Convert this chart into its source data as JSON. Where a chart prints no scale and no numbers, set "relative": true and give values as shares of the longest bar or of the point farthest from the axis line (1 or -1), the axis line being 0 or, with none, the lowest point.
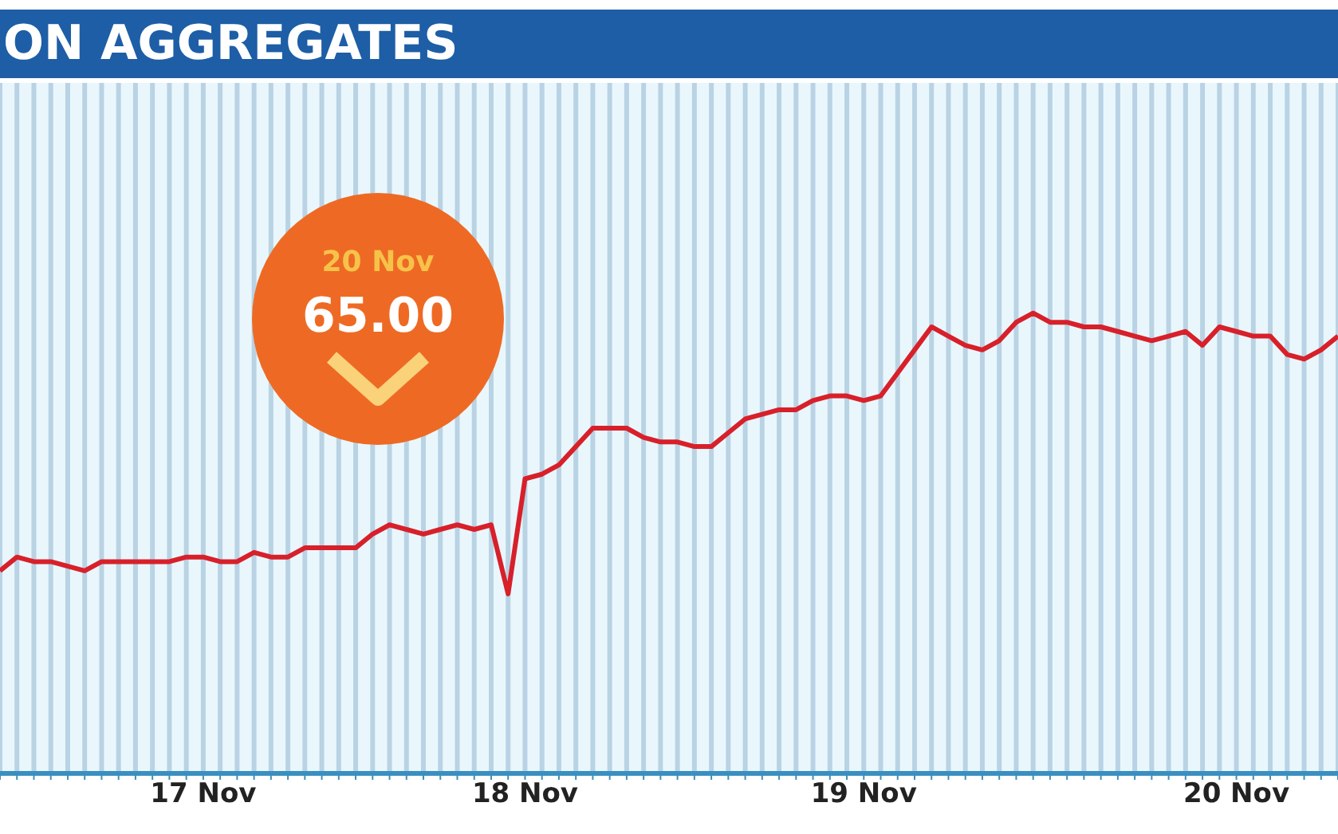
{
  "chart_data": {
    "type": "line",
    "title": "ON AGGREGATES",
    "relative": true,
    "annotations": [
      "20 Nov",
      "65.00"
    ],
    "grid": "x",
    "line_style": "solid",
    "categories": [
      null,
      null,
      null,
      null,
      null,
      null,
      null,
      null,
      null,
      null,
      null,
      null,
      "17 Nov",
      null,
      null,
      null,
      null,
      null,
      null,
      null,
      null,
      null,
      null,
      null,
      null,
      null,
      null,
      null,
      null,
      null,
      null,
      "18 Nov",
      null,
      null,
      null,
      null,
      null,
      null,
      null,
      null,
      null,
      null,
      null,
      null,
      null,
      null,
      null,
      null,
      null,
      null,
      null,
      "19 Nov",
      null,
      null,
      null,
      null,
      null,
      null,
      null,
      null,
      null,
      null,
      null,
      null,
      null,
      null,
      null,
      null,
      null,
      null,
      null,
      null,
      null,
      "20 Nov",
      null,
      null,
      null,
      null,
      null,
      null
    ],
    "series": [
      {
        "color": "#d8202a",
        "values": [
          0.44,
          0.47,
          0.46,
          0.46,
          0.45,
          0.44,
          0.46,
          0.46,
          0.46,
          0.46,
          0.46,
          0.47,
          0.47,
          0.46,
          0.46,
          0.48,
          0.47,
          0.47,
          0.49,
          0.49,
          0.49,
          0.49,
          0.52,
          0.54,
          0.53,
          0.52,
          0.53,
          0.54,
          0.53,
          0.54,
          0.39,
          0.64,
          0.65,
          0.67,
          0.71,
          0.75,
          0.75,
          0.75,
          0.73,
          0.72,
          0.72,
          0.71,
          0.71,
          0.74,
          0.77,
          0.78,
          0.79,
          0.79,
          0.81,
          0.82,
          0.82,
          0.81,
          0.82,
          0.87,
          0.92,
          0.97,
          0.95,
          0.93,
          0.92,
          0.94,
          0.98,
          1.0,
          0.98,
          0.98,
          0.97,
          0.97,
          0.96,
          0.95,
          0.94,
          0.95,
          0.96,
          0.93,
          0.97,
          0.96,
          0.95,
          0.95,
          0.91,
          0.9,
          0.92,
          0.95
        ]
      }
    ]
  }
}
